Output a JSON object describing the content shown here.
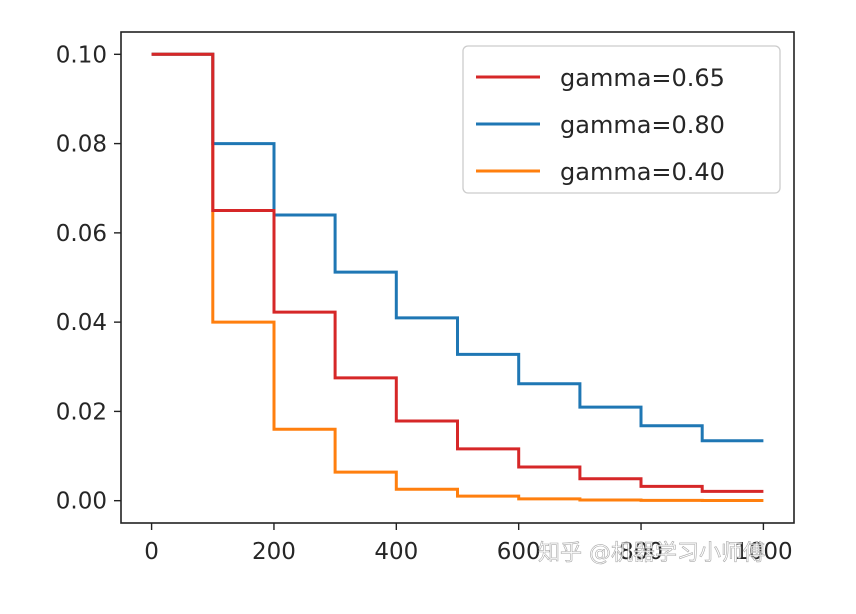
{
  "chart_data": {
    "type": "line",
    "title": "",
    "xlabel": "",
    "ylabel": "",
    "xlim": [
      -50,
      1050
    ],
    "ylim": [
      -0.005,
      0.105
    ],
    "xticks": [
      0,
      200,
      400,
      600,
      800,
      1000
    ],
    "xtick_labels": [
      "0",
      "200",
      "400",
      "600",
      "800",
      "1000"
    ],
    "yticks": [
      0.0,
      0.02,
      0.04,
      0.06,
      0.08,
      0.1
    ],
    "ytick_labels": [
      "0.00",
      "0.02",
      "0.04",
      "0.06",
      "0.08",
      "0.10"
    ],
    "grid": false,
    "legend_location": "top-right",
    "step_x": [
      0,
      100,
      200,
      300,
      400,
      500,
      600,
      700,
      800,
      900,
      1000
    ],
    "series": [
      {
        "name": "gamma=0.65",
        "color": "#d62728",
        "values": [
          0.1,
          0.065,
          0.04225,
          0.0275,
          0.01785,
          0.0116,
          0.00754,
          0.0049,
          0.00319,
          0.00207,
          0.00207
        ]
      },
      {
        "name": "gamma=0.80",
        "color": "#1f77b4",
        "values": [
          0.1,
          0.08,
          0.064,
          0.0512,
          0.04096,
          0.03277,
          0.02621,
          0.02097,
          0.01678,
          0.01342,
          0.01342
        ]
      },
      {
        "name": "gamma=0.40",
        "color": "#ff7f0e",
        "values": [
          0.1,
          0.04,
          0.016,
          0.0064,
          0.00256,
          0.00102,
          0.00041,
          0.00016,
          7e-05,
          3e-05,
          3e-05
        ]
      }
    ]
  },
  "watermark": {
    "text": "知乎 @机器学习小师傅"
  }
}
